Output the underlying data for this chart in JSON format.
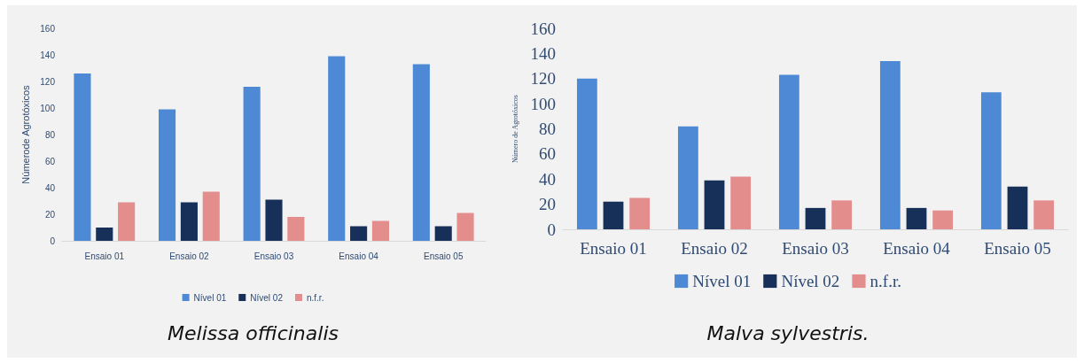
{
  "chart_data": [
    {
      "type": "bar",
      "title": "Melissa officinalis",
      "ylabel": "Númerode Agrotóxicos",
      "categories": [
        "Ensaio 01",
        "Ensaio 02",
        "Ensaio 03",
        "Ensaio 04",
        "Ensaio 05"
      ],
      "series": [
        {
          "name": "Nível 01",
          "color": "#4e89d6",
          "values": [
            126,
            99,
            116,
            139,
            133
          ]
        },
        {
          "name": "Nível 02",
          "color": "#16305a",
          "values": [
            10,
            29,
            31,
            11,
            11
          ]
        },
        {
          "name": "n.f.r.",
          "color": "#e38d8d",
          "values": [
            29,
            37,
            18,
            15,
            21
          ]
        }
      ],
      "ylim": [
        0,
        160
      ],
      "yticks": [
        0,
        20,
        40,
        60,
        80,
        100,
        120,
        140,
        160
      ],
      "grid": false,
      "legend": "bottom"
    },
    {
      "type": "bar",
      "title": "Malva sylvestris.",
      "ylabel": "Número de Agrotóxicos",
      "categories": [
        "Ensaio 01",
        "Ensaio 02",
        "Ensaio 03",
        "Ensaio 04",
        "Ensaio 05"
      ],
      "series": [
        {
          "name": "Nível 01",
          "color": "#4e89d6",
          "values": [
            120,
            82,
            123,
            134,
            109
          ]
        },
        {
          "name": "Nível 02",
          "color": "#16305a",
          "values": [
            22,
            39,
            17,
            17,
            34
          ]
        },
        {
          "name": "n.f.r.",
          "color": "#e38d8d",
          "values": [
            25,
            42,
            23,
            15,
            23
          ]
        }
      ],
      "ylim": [
        0,
        160
      ],
      "yticks": [
        0,
        20,
        40,
        60,
        80,
        100,
        120,
        140,
        160
      ],
      "grid": false,
      "legend": "bottom"
    }
  ]
}
